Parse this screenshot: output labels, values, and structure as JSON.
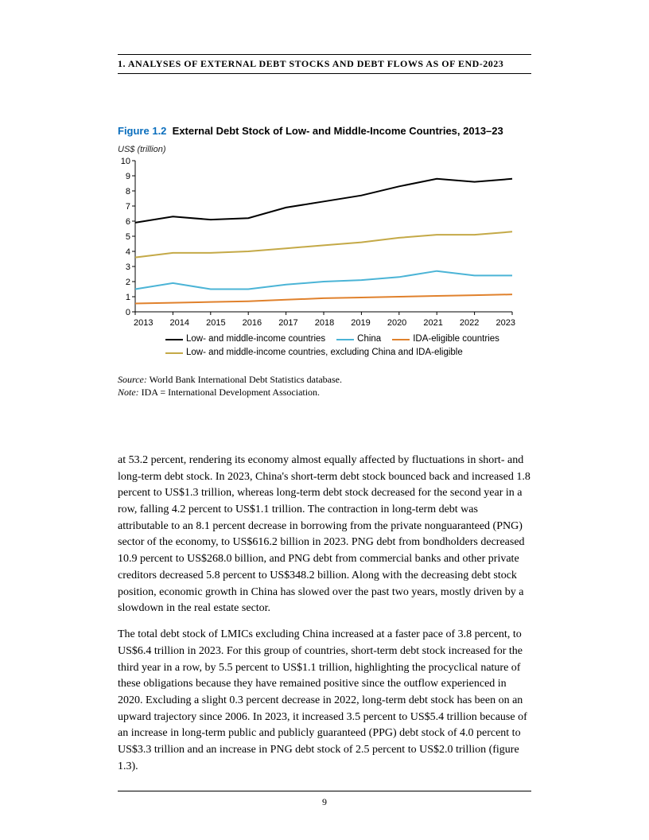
{
  "header": {
    "title": "1. ANALYSES OF EXTERNAL DEBT STOCKS AND DEBT FLOWS AS OF END-2023"
  },
  "figure": {
    "number": "Figure 1.2",
    "title": "External Debt Stock of Low- and Middle-Income Countries, 2013–23",
    "y_axis_label": "US$ (trillion)",
    "chart": {
      "type": "line",
      "xlim": [
        2013,
        2023
      ],
      "ylim": [
        0,
        10
      ],
      "ytick_step": 1,
      "yticks": [
        "0",
        "1",
        "2",
        "3",
        "4",
        "5",
        "6",
        "7",
        "8",
        "9",
        "10"
      ],
      "xticks": [
        "2013",
        "2014",
        "2015",
        "2016",
        "2017",
        "2018",
        "2019",
        "2020",
        "2021",
        "2022",
        "2023"
      ],
      "background_color": "#ffffff",
      "axis_color": "#000000",
      "tick_length": 4,
      "series": [
        {
          "name": "Low- and middle-income countries",
          "color": "#000000",
          "width": 2,
          "values": [
            5.9,
            6.3,
            6.1,
            6.2,
            6.9,
            7.3,
            7.7,
            8.3,
            8.8,
            8.6,
            8.8
          ]
        },
        {
          "name": "China",
          "color": "#4bb4d6",
          "width": 2,
          "values": [
            1.5,
            1.9,
            1.5,
            1.5,
            1.8,
            2.0,
            2.1,
            2.3,
            2.7,
            2.4,
            2.4
          ]
        },
        {
          "name": "IDA-eligible countries",
          "color": "#e0812c",
          "width": 2,
          "values": [
            0.55,
            0.6,
            0.65,
            0.7,
            0.8,
            0.9,
            0.95,
            1.0,
            1.05,
            1.1,
            1.15
          ]
        },
        {
          "name": "Low- and middle-income countries, excluding China and IDA-eligible",
          "color": "#c4a947",
          "width": 2,
          "values": [
            3.6,
            3.9,
            3.9,
            4.0,
            4.2,
            4.4,
            4.6,
            4.9,
            5.1,
            5.1,
            5.3
          ]
        }
      ]
    },
    "source_label": "Source:",
    "source_text": " World Bank International Debt Statistics database.",
    "note_label": "Note:",
    "note_text": " IDA = International Development Association."
  },
  "body": {
    "p1": "at 53.2 percent, rendering its economy almost equally affected by fluctuations in short- and long-term debt stock. In 2023, China's short-term debt stock bounced back and increased 1.8 percent to US$1.3 trillion, whereas long-term debt stock decreased for the second year in a row, falling 4.2 percent to US$1.1 trillion. The contraction in long-term debt was attributable to an 8.1 percent decrease in borrowing from the private nonguaranteed (PNG) sector of the economy, to US$616.2 billion in 2023. PNG debt from bondholders decreased 10.9 percent to US$268.0 billion, and PNG debt from commercial banks and other private creditors decreased 5.8 percent to US$348.2 billion. Along with the decreasing debt stock position, economic growth in China has slowed over the past two years, mostly driven by a slowdown in the real estate sector.",
    "p2": "The total debt stock of LMICs excluding China increased at a faster pace of 3.8 percent, to US$6.4 trillion in 2023. For this group of countries, short-term debt stock increased for the third year in a row, by 5.5 percent to US$1.1 trillion, highlighting the procyclical nature of these obligations because they have remained positive since the outflow experienced in 2020. Excluding a slight 0.3 percent decrease in 2022, long-term debt stock has been on an upward trajectory since 2006. In 2023, it increased 3.5 percent to US$5.4 trillion because of an increase in long-term public and publicly guaranteed (PPG) debt stock of 4.0 percent to US$3.3 trillion and an increase in PNG debt stock of 2.5 percent to US$2.0 trillion (figure 1.3)."
  },
  "footer": {
    "page_number": "9"
  }
}
